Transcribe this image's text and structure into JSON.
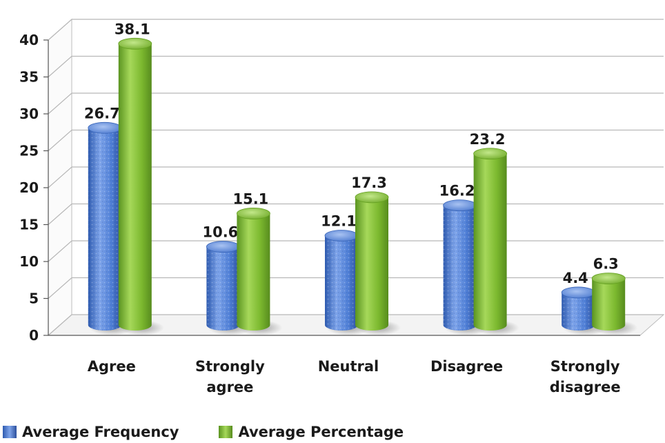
{
  "chart_data": {
    "type": "bar",
    "categories": [
      [
        "Agree"
      ],
      [
        "Strongly",
        "agree"
      ],
      [
        "Neutral"
      ],
      [
        "Disagree"
      ],
      [
        "Strongly",
        "disagree"
      ]
    ],
    "series": [
      {
        "name": "Average Frequency",
        "values": [
          26.7,
          10.6,
          12.1,
          16.2,
          4.4
        ],
        "color": "#4f7fd6"
      },
      {
        "name": "Average Percentage",
        "values": [
          38.1,
          15.1,
          17.3,
          23.2,
          6.3
        ],
        "color": "#7cb92f"
      }
    ],
    "ylim": [
      0,
      40
    ],
    "yticks": [
      0,
      5,
      10,
      15,
      20,
      25,
      30,
      35,
      40
    ],
    "grid": true,
    "legend_position": "bottom-left",
    "style": "3d-cylinder",
    "title": "",
    "xlabel": "",
    "ylabel": ""
  }
}
